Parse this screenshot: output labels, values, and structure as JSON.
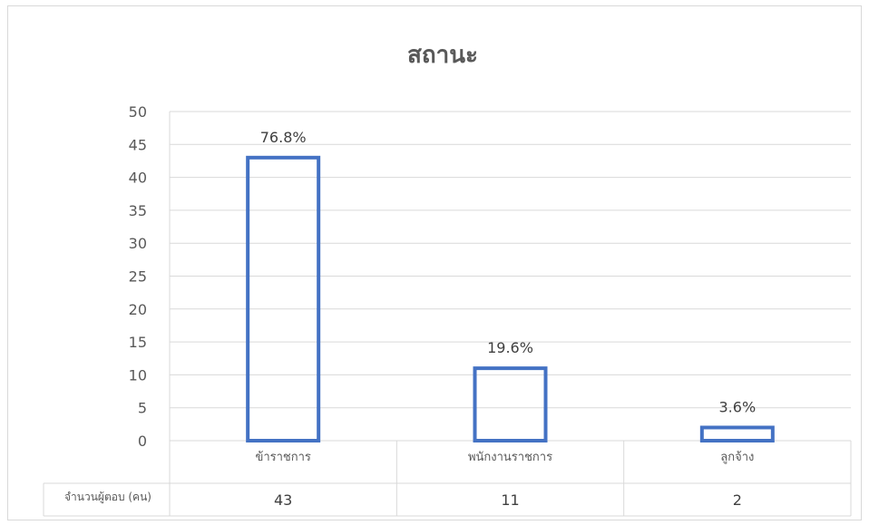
{
  "chart_data": {
    "type": "bar",
    "title": "สถานะ",
    "categories": [
      "ข้าราชการ",
      "พนักงานราชการ",
      "ลูกจ้าง"
    ],
    "series": [
      {
        "name": "จำนวนผู้ตอบ (คน)",
        "values": [
          43,
          11,
          2
        ],
        "color": "#4472C4"
      }
    ],
    "data_labels": [
      "76.8%",
      "19.6%",
      "3.6%"
    ],
    "ylim": [
      0,
      50
    ],
    "yticks": [
      0,
      5,
      10,
      15,
      20,
      25,
      30,
      35,
      40,
      45,
      50
    ],
    "grid": true,
    "bar_style": "outline",
    "data_table": {
      "row_header": "จำนวนผู้ตอบ (คน)",
      "values": [
        "43",
        "11",
        "2"
      ]
    }
  }
}
